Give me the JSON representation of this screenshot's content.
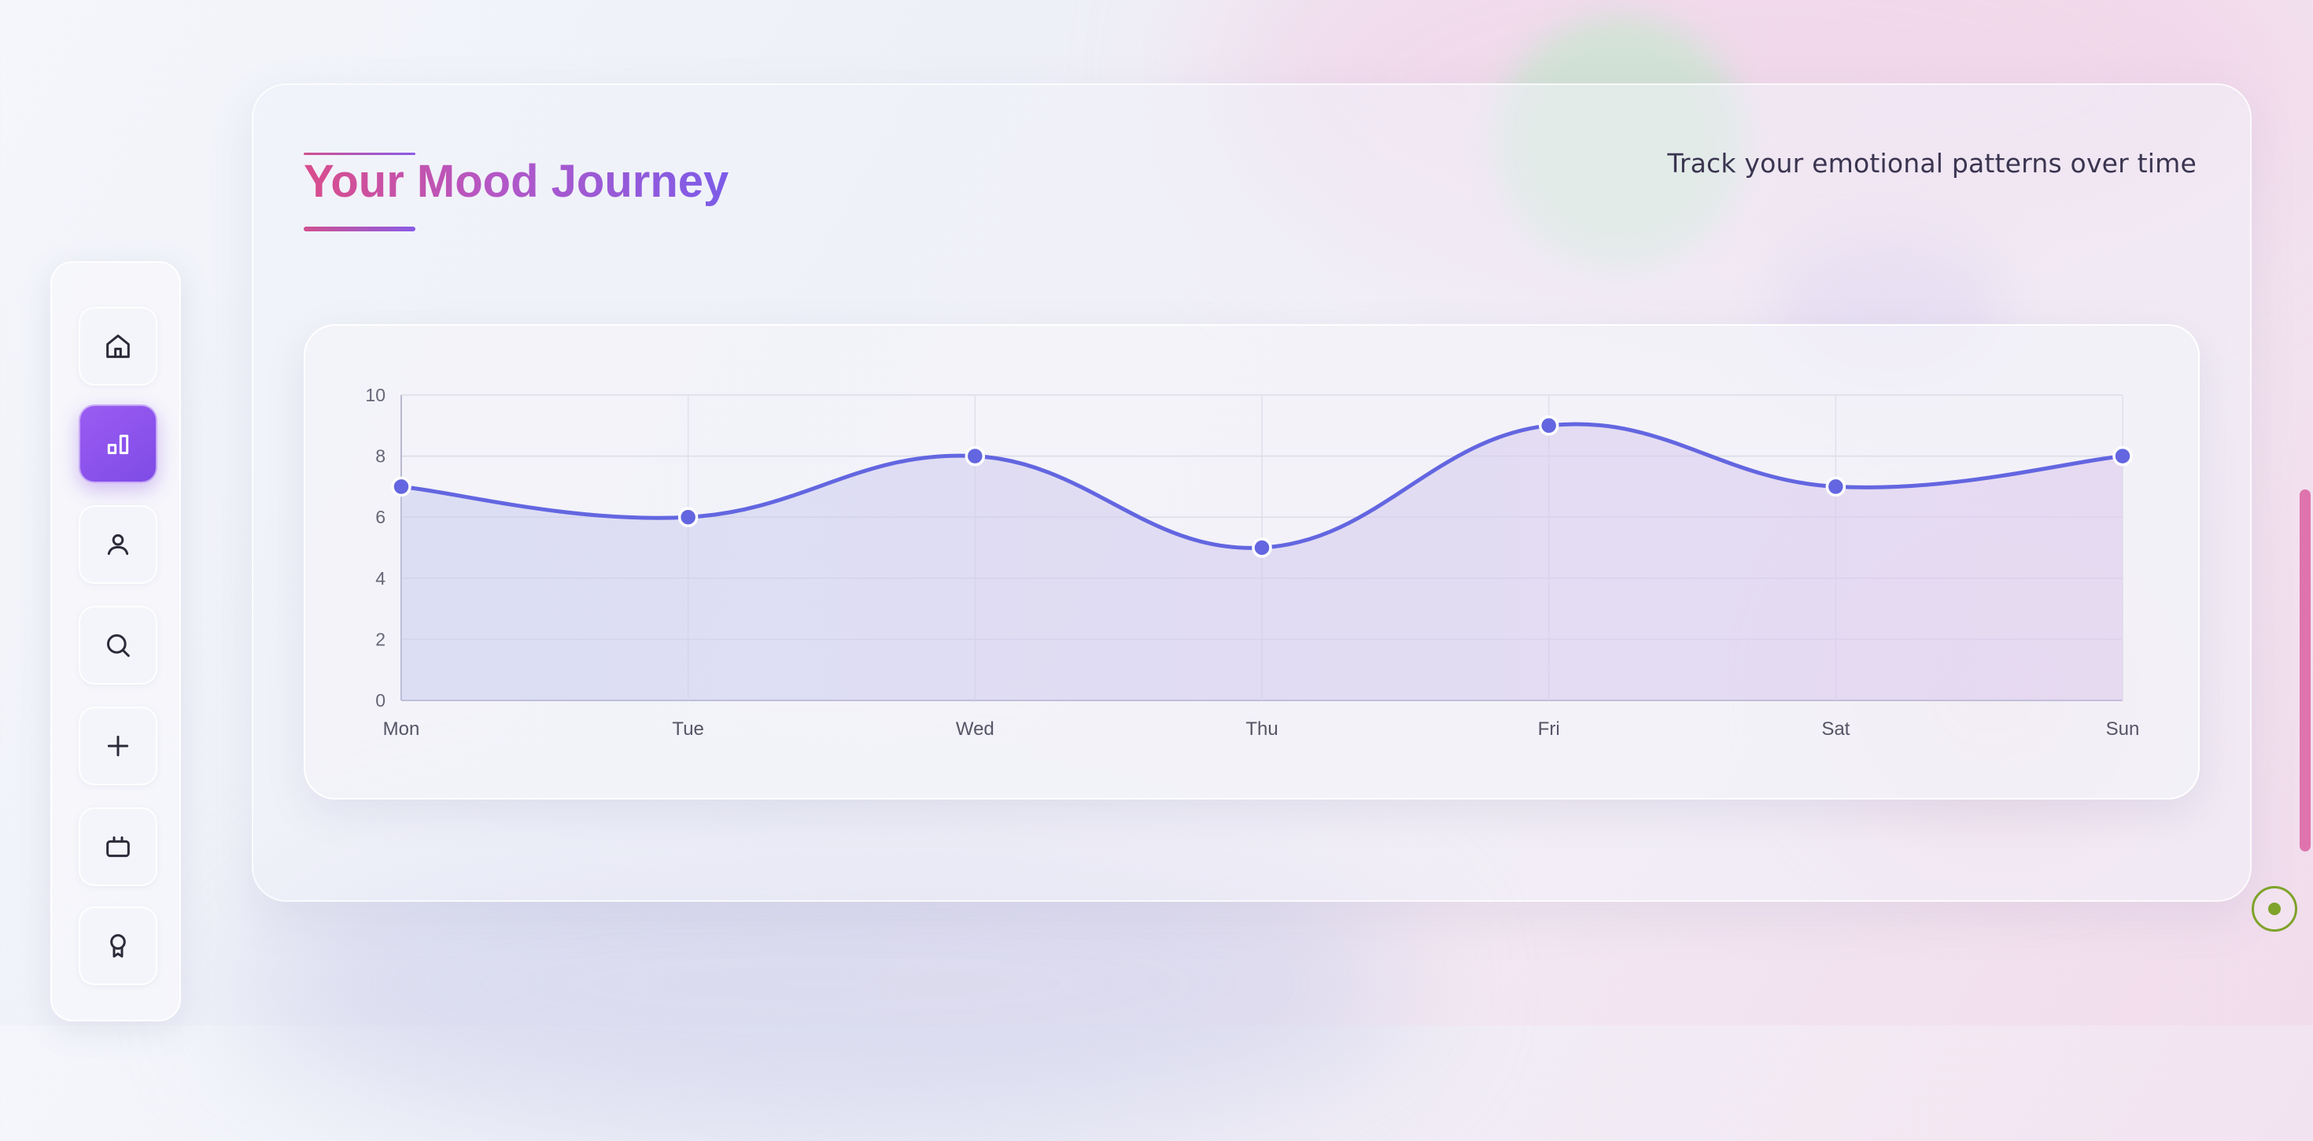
{
  "header": {
    "title": "Your Mood Journey",
    "subtitle": "Track your emotional patterns over time"
  },
  "sidebar": {
    "items": [
      {
        "name": "home",
        "icon": "home-icon",
        "active": false
      },
      {
        "name": "stats",
        "icon": "bar-chart-icon",
        "active": true
      },
      {
        "name": "profile",
        "icon": "user-icon",
        "active": false
      },
      {
        "name": "search",
        "icon": "search-icon",
        "active": false
      },
      {
        "name": "add",
        "icon": "plus-icon",
        "active": false
      },
      {
        "name": "media",
        "icon": "tv-icon",
        "active": false
      },
      {
        "name": "achievements",
        "icon": "award-icon",
        "active": false
      }
    ]
  },
  "colors": {
    "accent": "#8b5cf6",
    "line": "#6366e0",
    "title_start": "#d94d8c",
    "title_end": "#7c5ce8",
    "scroll_thumb": "#de73ad",
    "fab": "#7fa32a"
  },
  "chart_data": {
    "type": "line",
    "categories": [
      "Mon",
      "Tue",
      "Wed",
      "Thu",
      "Fri",
      "Sat",
      "Sun"
    ],
    "series": [
      {
        "values": [
          7,
          6,
          8,
          5,
          9,
          7,
          8
        ]
      }
    ],
    "ylim": [
      0,
      10
    ],
    "yticks": [
      0,
      2,
      4,
      6,
      8,
      10
    ],
    "grid": true,
    "legend": "none",
    "fill": "area"
  }
}
